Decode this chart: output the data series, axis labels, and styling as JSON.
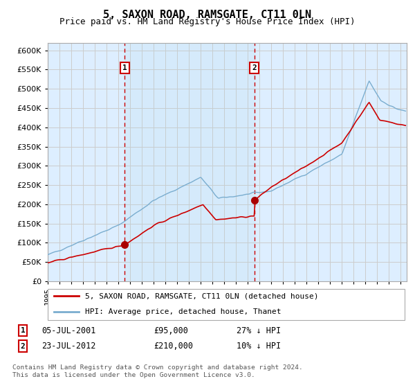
{
  "title": "5, SAXON ROAD, RAMSGATE, CT11 0LN",
  "subtitle": "Price paid vs. HM Land Registry's House Price Index (HPI)",
  "title_fontsize": 11,
  "subtitle_fontsize": 9,
  "background_color": "#ffffff",
  "plot_bg_color": "#ddeeff",
  "grid_color": "#cccccc",
  "ylabel_vals": [
    0,
    50000,
    100000,
    150000,
    200000,
    250000,
    300000,
    350000,
    400000,
    450000,
    500000,
    550000,
    600000
  ],
  "ylim": [
    0,
    620000
  ],
  "xlim_start": 1995.0,
  "xlim_end": 2025.5,
  "sale1_x": 2001.54,
  "sale1_y": 95000,
  "sale1_label": "1",
  "sale1_date": "05-JUL-2001",
  "sale1_price": "£95,000",
  "sale1_hpi": "27% ↓ HPI",
  "sale2_x": 2012.55,
  "sale2_y": 210000,
  "sale2_label": "2",
  "sale2_date": "23-JUL-2012",
  "sale2_price": "£210,000",
  "sale2_hpi": "10% ↓ HPI",
  "red_line_color": "#cc0000",
  "blue_line_color": "#7aadcf",
  "legend_red_label": "5, SAXON ROAD, RAMSGATE, CT11 0LN (detached house)",
  "legend_blue_label": "HPI: Average price, detached house, Thanet",
  "footnote": "Contains HM Land Registry data © Crown copyright and database right 2024.\nThis data is licensed under the Open Government Licence v3.0.",
  "vline_color": "#cc0000",
  "marker_box_color": "#cc0000",
  "sale_dot_color": "#aa0000"
}
